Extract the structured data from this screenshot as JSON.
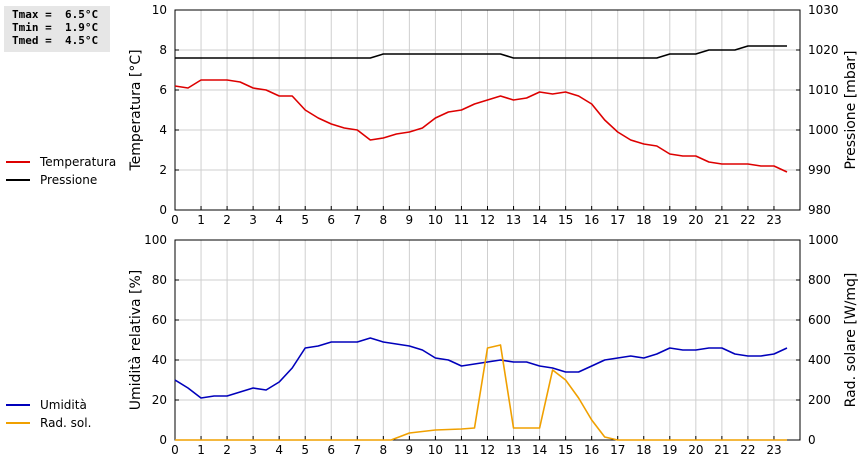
{
  "stats": {
    "tmax": "Tmax =  6.5°C",
    "tmin": "Tmin =  1.9°C",
    "tmed": "Tmed =  4.5°C"
  },
  "chart_data": [
    {
      "type": "line",
      "ylabel": "Temperatura [°C]",
      "y2label": "Pressione [mbar]",
      "xlim": [
        0,
        24
      ],
      "xticks": [
        0,
        1,
        2,
        3,
        4,
        5,
        6,
        7,
        8,
        9,
        10,
        11,
        12,
        13,
        14,
        15,
        16,
        17,
        18,
        19,
        20,
        21,
        22,
        23
      ],
      "ylim": [
        0,
        10
      ],
      "yticks": [
        0,
        2,
        4,
        6,
        8,
        10
      ],
      "y2lim": [
        980,
        1030
      ],
      "y2ticks": [
        980,
        990,
        1000,
        1010,
        1020,
        1030
      ],
      "grid": true,
      "legend_position": "left",
      "series": [
        {
          "name": "Temperatura",
          "color": "#dd0000",
          "axis": "left",
          "x": [
            0,
            0.5,
            0.75,
            1,
            1.5,
            2,
            2.5,
            3,
            3.5,
            4,
            4.5,
            5,
            5.5,
            6,
            6.5,
            7,
            7.5,
            8,
            8.5,
            9,
            9.5,
            10,
            10.5,
            11,
            11.5,
            12,
            12.5,
            13,
            13.5,
            14,
            14.5,
            15,
            15.5,
            16,
            16.5,
            17,
            17.5,
            18,
            18.5,
            19,
            19.5,
            20,
            20.5,
            21,
            21.5,
            22,
            22.5,
            23,
            23.5
          ],
          "y": [
            6.2,
            6.1,
            6.3,
            6.5,
            6.5,
            6.5,
            6.4,
            6.1,
            6.0,
            5.7,
            5.7,
            5.0,
            4.6,
            4.3,
            4.1,
            4.0,
            3.5,
            3.6,
            3.8,
            3.9,
            4.1,
            4.6,
            4.9,
            5.0,
            5.3,
            5.5,
            5.7,
            5.5,
            5.6,
            5.9,
            5.8,
            5.9,
            5.7,
            5.3,
            4.5,
            3.9,
            3.5,
            3.3,
            3.2,
            2.8,
            2.7,
            2.7,
            2.4,
            2.3,
            2.3,
            2.3,
            2.2,
            2.2,
            1.9
          ]
        },
        {
          "name": "Pressione",
          "color": "#000000",
          "axis": "right",
          "x": [
            0,
            7.5,
            8,
            12.5,
            13,
            18.5,
            19,
            20,
            20.5,
            21.5,
            22,
            23.5
          ],
          "y": [
            1018,
            1018,
            1019,
            1019,
            1018,
            1018,
            1019,
            1019,
            1020,
            1020,
            1021,
            1021
          ]
        }
      ]
    },
    {
      "type": "line",
      "ylabel": "Umidità relativa [%]",
      "y2label": "Rad. solare [W/mq]",
      "xlim": [
        0,
        24
      ],
      "xticks": [
        0,
        1,
        2,
        3,
        4,
        5,
        6,
        7,
        8,
        9,
        10,
        11,
        12,
        13,
        14,
        15,
        16,
        17,
        18,
        19,
        20,
        21,
        22,
        23
      ],
      "ylim": [
        0,
        100
      ],
      "yticks": [
        0,
        20,
        40,
        60,
        80,
        100
      ],
      "y2lim": [
        0,
        1000
      ],
      "y2ticks": [
        0,
        200,
        400,
        600,
        800,
        1000
      ],
      "grid": true,
      "legend_position": "left",
      "series": [
        {
          "name": "Umidità",
          "color": "#0000bb",
          "axis": "left",
          "x": [
            0,
            0.5,
            1,
            1.5,
            2,
            2.5,
            3,
            3.5,
            4,
            4.5,
            5,
            5.5,
            6,
            6.5,
            7,
            7.5,
            8,
            8.5,
            9,
            9.5,
            10,
            10.5,
            11,
            11.5,
            12,
            12.5,
            13,
            13.5,
            14,
            14.5,
            15,
            15.5,
            16,
            16.5,
            17,
            17.5,
            18,
            18.5,
            19,
            19.5,
            20,
            20.5,
            21,
            21.5,
            22,
            22.5,
            23,
            23.5
          ],
          "y": [
            30,
            26,
            21,
            22,
            22,
            24,
            26,
            25,
            29,
            36,
            46,
            47,
            49,
            49,
            49,
            51,
            49,
            48,
            47,
            45,
            41,
            40,
            37,
            38,
            39,
            40,
            39,
            39,
            37,
            36,
            34,
            34,
            37,
            40,
            41,
            42,
            41,
            43,
            46,
            45,
            45,
            46,
            46,
            43,
            42,
            42,
            43,
            46
          ]
        },
        {
          "name": "Rad. sol.",
          "color": "#f0a000",
          "axis": "right",
          "x": [
            0,
            8.3,
            8.7,
            9,
            10,
            11,
            11.5,
            12,
            12.5,
            13,
            14,
            14.5,
            15,
            15.5,
            16,
            16.5,
            17,
            23.5
          ],
          "y": [
            0,
            0,
            20,
            35,
            50,
            55,
            60,
            460,
            475,
            60,
            60,
            350,
            300,
            210,
            100,
            15,
            0,
            0
          ]
        }
      ]
    }
  ]
}
